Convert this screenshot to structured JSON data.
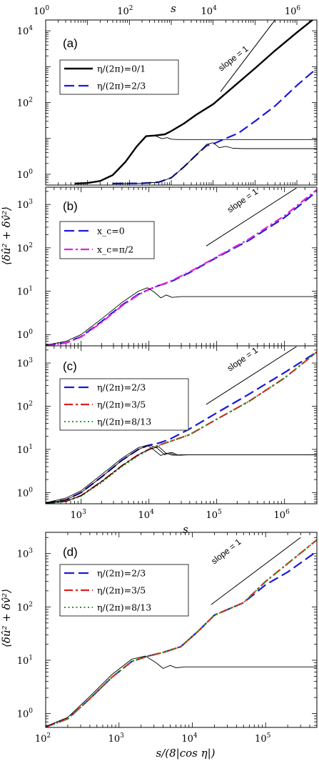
{
  "figure": {
    "top_axis_label": "s",
    "ylabel": "⟨δû² + δv̂²⟩",
    "slope_label": "slope = 1"
  },
  "chart_data": [
    {
      "id": "a",
      "type": "line",
      "panel_label": "(a)",
      "x_scale": "log",
      "y_scale": "log",
      "xlim": [
        1,
        3000000
      ],
      "ylim": [
        0.5,
        20000
      ],
      "x_ticks": [
        {
          "v": 1,
          "base": "10",
          "exp": "0"
        },
        {
          "v": 100,
          "base": "10",
          "exp": "2"
        },
        {
          "v": 10000,
          "base": "10",
          "exp": "4"
        },
        {
          "v": 1000000,
          "base": "10",
          "exp": "6"
        }
      ],
      "y_ticks": [
        {
          "v": 1,
          "base": "10",
          "exp": "0"
        },
        {
          "v": 100,
          "base": "10",
          "exp": "2"
        },
        {
          "v": 10000,
          "base": "10",
          "exp": "4"
        }
      ],
      "x_ticks_position": "top",
      "xlabel": "",
      "legend_position": "top-left",
      "series": [
        {
          "name": "η/(2π)=0/1",
          "color": "#000000",
          "style": "solid",
          "width": 2.4,
          "x": [
            5,
            10,
            20,
            40,
            80,
            150,
            250,
            400,
            700,
            1000,
            2000,
            4000,
            10000,
            30000,
            100000,
            300000,
            1000000,
            3000000
          ],
          "y": [
            0.55,
            0.57,
            0.65,
            0.95,
            2.2,
            6,
            11.5,
            12,
            13,
            16,
            26,
            46,
            90,
            270,
            900,
            2800,
            9000,
            25000
          ]
        },
        {
          "name": "η/(2π)=2/3",
          "color": "#1a1adb",
          "style": "dashed",
          "width": 2.2,
          "x": [
            40,
            200,
            500,
            1000,
            2000,
            4000,
            7000,
            10000,
            20000,
            40000,
            100000,
            300000,
            1000000,
            3000000
          ],
          "y": [
            0.55,
            0.56,
            0.6,
            0.8,
            1.6,
            3.5,
            6.3,
            7,
            10,
            14,
            30,
            80,
            300,
            900
          ]
        },
        {
          "name": "",
          "color": "#000000",
          "style": "thin",
          "width": 0.9,
          "x": [
            5,
            10,
            20,
            40,
            80,
            150,
            250,
            400,
            600,
            800,
            1000,
            1500,
            3000000
          ],
          "y": [
            0.55,
            0.57,
            0.65,
            0.95,
            2.2,
            6,
            11.5,
            12,
            9.8,
            10.5,
            9.5,
            9.3,
            9.3
          ]
        },
        {
          "name": "",
          "color": "#000000",
          "style": "thin",
          "width": 0.9,
          "x": [
            40,
            200,
            500,
            1000,
            2000,
            4000,
            7000,
            10000,
            14000,
            20000,
            30000,
            50000,
            3000000
          ],
          "y": [
            0.55,
            0.56,
            0.6,
            0.8,
            1.6,
            3.5,
            6.8,
            7.6,
            5.5,
            6,
            5.3,
            5.2,
            5.2
          ]
        }
      ],
      "slope_line": {
        "x": [
          15000,
          300000
        ],
        "y": [
          200,
          20000
        ]
      }
    },
    {
      "id": "b",
      "type": "line",
      "panel_label": "(b)",
      "x_scale": "log",
      "y_scale": "log",
      "xlim": [
        300,
        3000000
      ],
      "ylim": [
        0.55,
        2500
      ],
      "x_ticks": [],
      "y_ticks": [
        {
          "v": 1,
          "base": "10",
          "exp": "0"
        },
        {
          "v": 10,
          "base": "10",
          "exp": "1"
        },
        {
          "v": 100,
          "base": "10",
          "exp": "2"
        },
        {
          "v": 1000,
          "base": "10",
          "exp": "3"
        }
      ],
      "x_ticks_position": "none",
      "xlabel": "",
      "legend_position": "middle-left",
      "series": [
        {
          "name": "x_c=0",
          "color": "#1a1adb",
          "style": "dashed",
          "width": 2.2,
          "x": [
            300,
            600,
            1000,
            2000,
            4000,
            7000,
            10000,
            14000,
            20000,
            40000,
            100000,
            300000,
            1000000,
            3000000
          ],
          "y": [
            0.56,
            0.65,
            0.9,
            2,
            4.8,
            8.5,
            11,
            13.5,
            16,
            27,
            60,
            150,
            500,
            2000
          ]
        },
        {
          "name": "x_c=π/2",
          "color": "#e020e0",
          "style": "dashdot",
          "width": 2.2,
          "x": [
            300,
            600,
            1000,
            2000,
            4000,
            7000,
            10000,
            14000,
            20000,
            40000,
            100000,
            300000,
            1000000,
            3000000
          ],
          "y": [
            0.56,
            0.64,
            0.88,
            1.9,
            4.6,
            8.3,
            11,
            13.5,
            16.5,
            28,
            62,
            160,
            550,
            2200
          ]
        },
        {
          "name": "",
          "color": "#000000",
          "style": "thin",
          "width": 0.9,
          "x": [
            300,
            600,
            1000,
            2000,
            4000,
            7000,
            9500,
            12000,
            15000,
            18000,
            22000,
            30000,
            3000000
          ],
          "y": [
            0.57,
            0.7,
            1.0,
            2.3,
            5.5,
            10,
            12,
            9.5,
            7,
            8.2,
            7.2,
            7.5,
            7.5
          ]
        }
      ],
      "slope_line": {
        "x": [
          70000,
          1500000
        ],
        "y": [
          110,
          2400
        ]
      }
    },
    {
      "id": "c",
      "type": "line",
      "panel_label": "(c)",
      "x_scale": "log",
      "y_scale": "log",
      "xlim": [
        300,
        3000000
      ],
      "ylim": [
        0.55,
        2500
      ],
      "x_ticks": [
        {
          "v": 1000,
          "base": "10",
          "exp": "3"
        },
        {
          "v": 10000,
          "base": "10",
          "exp": "4"
        },
        {
          "v": 100000,
          "base": "10",
          "exp": "5"
        },
        {
          "v": 1000000,
          "base": "10",
          "exp": "6"
        }
      ],
      "y_ticks": [
        {
          "v": 1,
          "base": "10",
          "exp": "0"
        },
        {
          "v": 10,
          "base": "10",
          "exp": "1"
        },
        {
          "v": 100,
          "base": "10",
          "exp": "2"
        },
        {
          "v": 1000,
          "base": "10",
          "exp": "3"
        }
      ],
      "x_ticks_position": "bottom",
      "xlabel": "s",
      "legend_position": "middle-left",
      "series": [
        {
          "name": "η/(2π)=2/3",
          "color": "#1a1adb",
          "style": "dashed",
          "width": 2.2,
          "x": [
            300,
            600,
            1000,
            2000,
            4000,
            7000,
            10000,
            14000,
            20000,
            40000,
            100000,
            300000,
            1000000,
            3000000
          ],
          "y": [
            0.57,
            0.68,
            1.0,
            2.3,
            5.6,
            10,
            12.5,
            14,
            17,
            30,
            70,
            190,
            600,
            1800
          ]
        },
        {
          "name": "η/(2π)=3/5",
          "color": "#dd2020",
          "style": "dashdot",
          "width": 2.2,
          "x": [
            300,
            600,
            1000,
            2000,
            4000,
            7000,
            10000,
            14000,
            20000,
            40000,
            100000,
            300000,
            1000000,
            3000000
          ],
          "y": [
            0.56,
            0.63,
            0.85,
            1.8,
            4.2,
            7.5,
            10,
            12.5,
            15,
            22,
            50,
            130,
            450,
            1800
          ]
        },
        {
          "name": "η/(2π)=8/13",
          "color": "#1fa31f",
          "style": "dotted",
          "width": 2.0,
          "x": [
            300,
            600,
            1000,
            2000,
            4000,
            7000,
            10000,
            14000,
            20000,
            40000,
            100000,
            300000,
            1000000,
            3000000
          ],
          "y": [
            0.56,
            0.62,
            0.83,
            1.7,
            4.0,
            7.2,
            9.8,
            12.3,
            15,
            22,
            50,
            130,
            450,
            1800
          ]
        },
        {
          "name": "",
          "color": "#000000",
          "style": "thin",
          "width": 0.9,
          "x": [
            300,
            600,
            1000,
            2000,
            4000,
            7000,
            9500,
            12000,
            15000,
            18000,
            22000,
            30000,
            3000000
          ],
          "y": [
            0.58,
            0.75,
            1.1,
            2.6,
            6.2,
            11,
            12.5,
            9.5,
            7.2,
            8.2,
            7.3,
            7.5,
            7.5
          ]
        },
        {
          "name": "",
          "color": "#000000",
          "style": "thin",
          "width": 0.9,
          "x": [
            300,
            600,
            1000,
            2000,
            4000,
            7000,
            10000,
            13000,
            17000,
            20000,
            25000,
            35000,
            3000000
          ],
          "y": [
            0.57,
            0.68,
            1.0,
            2.3,
            5.6,
            10,
            12.5,
            11,
            7.5,
            8.3,
            7.3,
            7.5,
            7.5
          ]
        },
        {
          "name": "",
          "color": "#000000",
          "style": "thin",
          "width": 0.9,
          "x": [
            300,
            600,
            1000,
            2000,
            4000,
            7000,
            10000,
            14000,
            18000,
            22000,
            27000,
            40000,
            3000000
          ],
          "y": [
            0.56,
            0.63,
            0.85,
            1.8,
            4.2,
            7.5,
            10,
            11.5,
            8,
            8.5,
            7.3,
            7.5,
            7.5
          ]
        }
      ],
      "slope_line": {
        "x": [
          70000,
          1500000
        ],
        "y": [
          110,
          2400
        ]
      }
    },
    {
      "id": "d",
      "type": "line",
      "panel_label": "(d)",
      "x_scale": "log",
      "y_scale": "log",
      "xlim": [
        100,
        500000
      ],
      "ylim": [
        0.55,
        2500
      ],
      "x_ticks": [
        {
          "v": 100,
          "base": "10",
          "exp": "2"
        },
        {
          "v": 1000,
          "base": "10",
          "exp": "3"
        },
        {
          "v": 10000,
          "base": "10",
          "exp": "4"
        },
        {
          "v": 100000,
          "base": "10",
          "exp": "5"
        }
      ],
      "y_ticks": [
        {
          "v": 1,
          "base": "10",
          "exp": "0"
        },
        {
          "v": 10,
          "base": "10",
          "exp": "1"
        },
        {
          "v": 100,
          "base": "10",
          "exp": "2"
        },
        {
          "v": 1000,
          "base": "10",
          "exp": "3"
        }
      ],
      "x_ticks_position": "bottom",
      "xlabel": "s/(8|cos η|)",
      "legend_position": "middle-left",
      "series": [
        {
          "name": "η/(2π)=2/3",
          "color": "#1a1adb",
          "style": "dashed",
          "width": 2.2,
          "x": [
            100,
            200,
            400,
            800,
            1500,
            2500,
            4000,
            7000,
            12000,
            20000,
            50000,
            100000,
            200000,
            500000
          ],
          "y": [
            0.56,
            0.8,
            1.9,
            4.8,
            9.5,
            12,
            14,
            18,
            35,
            70,
            120,
            260,
            450,
            1100
          ]
        },
        {
          "name": "η/(2π)=3/5",
          "color": "#dd2020",
          "style": "dashdot",
          "width": 2.2,
          "x": [
            100,
            200,
            400,
            800,
            1500,
            2500,
            4000,
            7000,
            12000,
            20000,
            50000,
            100000,
            200000,
            500000
          ],
          "y": [
            0.56,
            0.8,
            1.9,
            4.8,
            9.5,
            12,
            14,
            18,
            35,
            70,
            120,
            300,
            650,
            1800
          ]
        },
        {
          "name": "η/(2π)=8/13",
          "color": "#1fa31f",
          "style": "dotted",
          "width": 2.0,
          "x": [
            100,
            200,
            400,
            800,
            1500,
            2500,
            4000,
            7000,
            12000,
            20000,
            50000,
            100000,
            200000,
            500000
          ],
          "y": [
            0.56,
            0.8,
            1.9,
            4.8,
            9.5,
            12,
            14,
            18,
            35,
            70,
            120,
            300,
            650,
            1800
          ]
        },
        {
          "name": "",
          "color": "#000000",
          "style": "thin",
          "width": 0.9,
          "x": [
            100,
            200,
            400,
            800,
            1500,
            2300,
            3200,
            4000,
            5000,
            6000,
            8000,
            500000
          ],
          "y": [
            0.57,
            0.85,
            2.1,
            5.4,
            10.5,
            12,
            9,
            7,
            8,
            7.2,
            7.5,
            7.5
          ]
        }
      ],
      "slope_line": {
        "x": [
          18000,
          300000
        ],
        "y": [
          110,
          2000
        ]
      }
    }
  ]
}
